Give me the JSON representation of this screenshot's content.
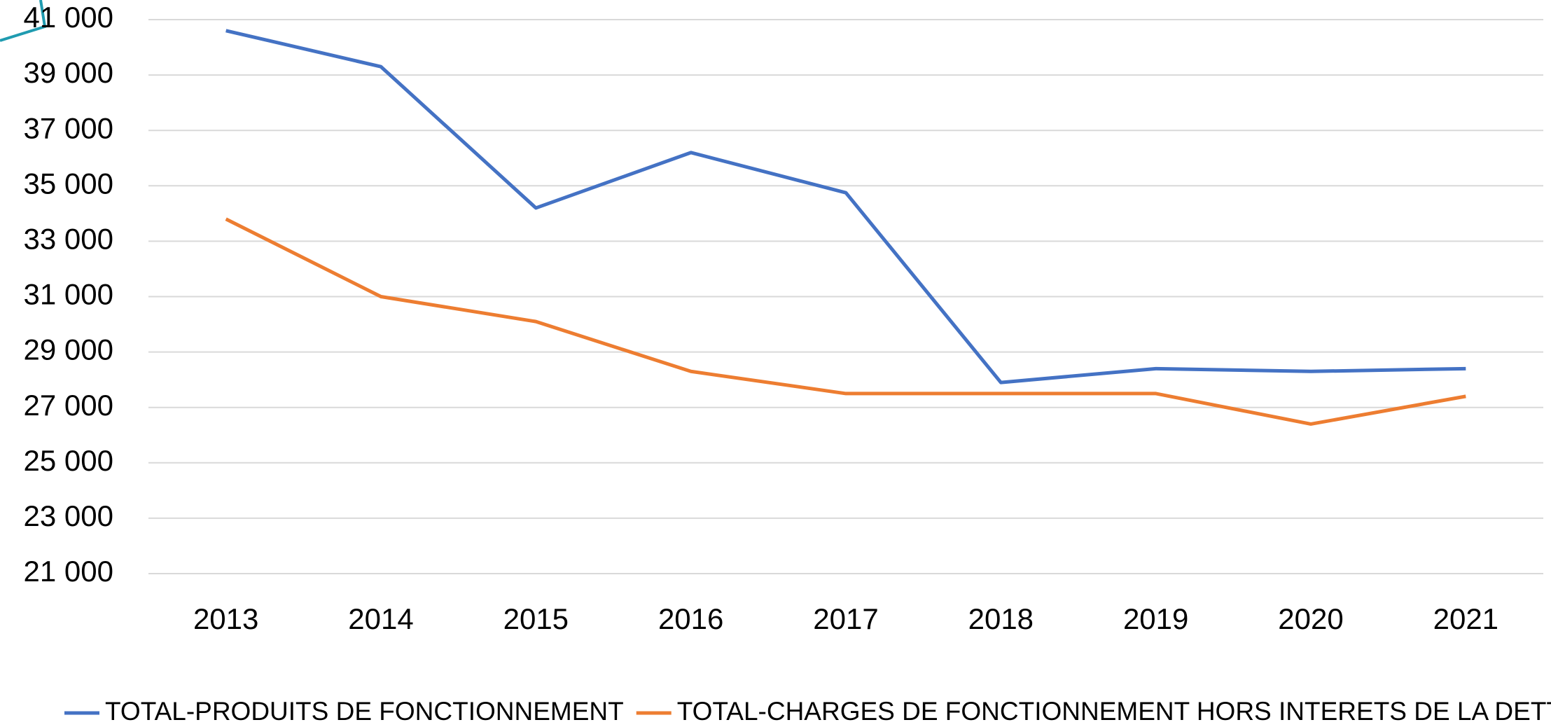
{
  "chart_data": {
    "type": "line",
    "categories": [
      "2013",
      "2014",
      "2015",
      "2016",
      "2017",
      "2018",
      "2019",
      "2020",
      "2021"
    ],
    "series": [
      {
        "name": "TOTAL-PRODUITS DE FONCTIONNEMENT",
        "color": "#4472c4",
        "values": [
          40600,
          39300,
          34200,
          36200,
          34750,
          27900,
          28400,
          28300,
          28400
        ]
      },
      {
        "name": "TOTAL-CHARGES DE FONCTIONNEMENT HORS INTERETS DE LA DETTE",
        "color": "#ed7d31",
        "values": [
          33800,
          31000,
          30100,
          28300,
          27500,
          27500,
          27500,
          26400,
          27400
        ]
      }
    ],
    "ylim": [
      21000,
      41000
    ],
    "yticks": [
      {
        "value": 21000,
        "label": "21 000"
      },
      {
        "value": 23000,
        "label": "23 000"
      },
      {
        "value": 25000,
        "label": "25 000"
      },
      {
        "value": 27000,
        "label": "27 000"
      },
      {
        "value": 29000,
        "label": "29 000"
      },
      {
        "value": 31000,
        "label": "31 000"
      },
      {
        "value": 33000,
        "label": "33 000"
      },
      {
        "value": 35000,
        "label": "35 000"
      },
      {
        "value": 37000,
        "label": "37 000"
      },
      {
        "value": 39000,
        "label": "39 000"
      },
      {
        "value": 41000,
        "label": "41 000"
      }
    ],
    "grid": true,
    "legend": "bottom"
  }
}
